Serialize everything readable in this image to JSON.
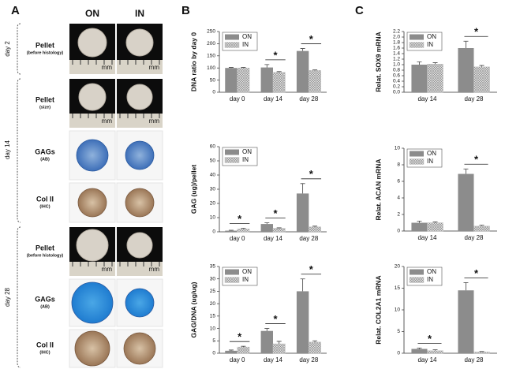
{
  "panel_a": {
    "label": "A",
    "columns": [
      "ON",
      "IN"
    ],
    "scale_label": "mm",
    "groups": [
      "day 2",
      "day 14",
      "day 28"
    ],
    "rows": [
      {
        "title": "Pellet",
        "subtitle": "(before histology)"
      },
      {
        "title": "Pellet",
        "subtitle": "(size)"
      },
      {
        "title": "GAGs",
        "subtitle": "(AB)"
      },
      {
        "title": "Col II",
        "subtitle": "(IHC)"
      },
      {
        "title": "Pellet",
        "subtitle": "(before histology)"
      },
      {
        "title": "GAGs",
        "subtitle": "(AB)"
      },
      {
        "title": "Col II",
        "subtitle": "(IHC)"
      }
    ]
  },
  "panel_b_label": "B",
  "panel_c_label": "C",
  "chart_data": [
    {
      "type": "bar",
      "y_label": "DNA ratio by day 0",
      "categories": [
        "day 0",
        "day 14",
        "day 28"
      ],
      "series": [
        {
          "name": "ON",
          "color": "#8c8c8c",
          "values": [
            100,
            102,
            170
          ],
          "errors": [
            2,
            12,
            10
          ]
        },
        {
          "name": "IN",
          "color": "#c4c4c4",
          "hatch": true,
          "values": [
            100,
            82,
            90
          ],
          "errors": [
            2,
            3,
            2
          ]
        }
      ],
      "significance": [
        null,
        "*",
        "*"
      ],
      "ylim": [
        0,
        250
      ],
      "yticks": [
        0,
        50,
        100,
        150,
        200,
        250
      ]
    },
    {
      "type": "bar",
      "y_label": "GAG (ug)/pellet",
      "categories": [
        "day 0",
        "day 14",
        "day 28"
      ],
      "series": [
        {
          "name": "ON",
          "color": "#8c8c8c",
          "values": [
            0.8,
            5.5,
            27
          ],
          "errors": [
            0.3,
            0.8,
            7
          ]
        },
        {
          "name": "IN",
          "color": "#c4c4c4",
          "hatch": true,
          "values": [
            2,
            2.5,
            3.5
          ],
          "errors": [
            0.5,
            0.3,
            0.5
          ]
        }
      ],
      "significance": [
        "*",
        "*",
        "*"
      ],
      "ylim": [
        0,
        60
      ],
      "yticks": [
        0,
        10,
        20,
        30,
        40,
        50,
        60
      ]
    },
    {
      "type": "bar",
      "y_label": "GAG/DNA (ug/ug)",
      "categories": [
        "day 0",
        "day 14",
        "day 28"
      ],
      "series": [
        {
          "name": "ON",
          "color": "#8c8c8c",
          "values": [
            1,
            9,
            25
          ],
          "errors": [
            0.3,
            1,
            5
          ]
        },
        {
          "name": "IN",
          "color": "#c4c4c4",
          "hatch": true,
          "values": [
            2.5,
            3.8,
            4.5
          ],
          "errors": [
            0.3,
            1,
            0.5
          ]
        }
      ],
      "significance": [
        "*",
        "*",
        "*"
      ],
      "ylim": [
        0,
        35
      ],
      "yticks": [
        0,
        5,
        10,
        15,
        20,
        25,
        30,
        35
      ]
    },
    {
      "type": "bar",
      "y_label": "Relat. SOX9 mRNA",
      "categories": [
        "day 14",
        "day 28"
      ],
      "series": [
        {
          "name": "ON",
          "color": "#8c8c8c",
          "values": [
            1.0,
            1.6
          ],
          "errors": [
            0.1,
            0.25
          ]
        },
        {
          "name": "IN",
          "color": "#c4c4c4",
          "hatch": true,
          "values": [
            1.02,
            0.92
          ],
          "errors": [
            0.05,
            0.05
          ]
        }
      ],
      "significance": [
        null,
        "*"
      ],
      "ylim": [
        0,
        2.2
      ],
      "yticks": [
        {
          "value": 0,
          "label": "0.0"
        },
        0.2,
        0.4,
        0.6,
        0.8,
        {
          "value": 1,
          "label": "1.0"
        },
        1.2,
        1.4,
        1.6,
        1.8,
        {
          "value": 2,
          "label": "2.0"
        },
        2.2
      ]
    },
    {
      "type": "bar",
      "y_label": "Relat. ACAN mRNA",
      "categories": [
        "day 14",
        "day 28"
      ],
      "series": [
        {
          "name": "ON",
          "color": "#8c8c8c",
          "values": [
            1.0,
            6.9
          ],
          "errors": [
            0.2,
            0.6
          ]
        },
        {
          "name": "IN",
          "color": "#c4c4c4",
          "hatch": true,
          "values": [
            1.0,
            0.6
          ],
          "errors": [
            0.1,
            0.1
          ]
        }
      ],
      "significance": [
        null,
        "*"
      ],
      "ylim": [
        0,
        10
      ],
      "yticks": [
        0,
        2,
        4,
        6,
        8,
        10
      ]
    },
    {
      "type": "bar",
      "y_label": "Relat. COL2A1 mRNA",
      "categories": [
        "day 14",
        "day 28"
      ],
      "series": [
        {
          "name": "ON",
          "color": "#8c8c8c",
          "values": [
            1.0,
            14.5
          ],
          "errors": [
            0.2,
            1.8
          ]
        },
        {
          "name": "IN",
          "color": "#c4c4c4",
          "hatch": true,
          "values": [
            0.6,
            0.3
          ],
          "errors": [
            0.2,
            0.1
          ]
        }
      ],
      "significance": [
        "*",
        "*"
      ],
      "ylim": [
        0,
        20
      ],
      "yticks": [
        0,
        5,
        10,
        15,
        20
      ]
    }
  ]
}
